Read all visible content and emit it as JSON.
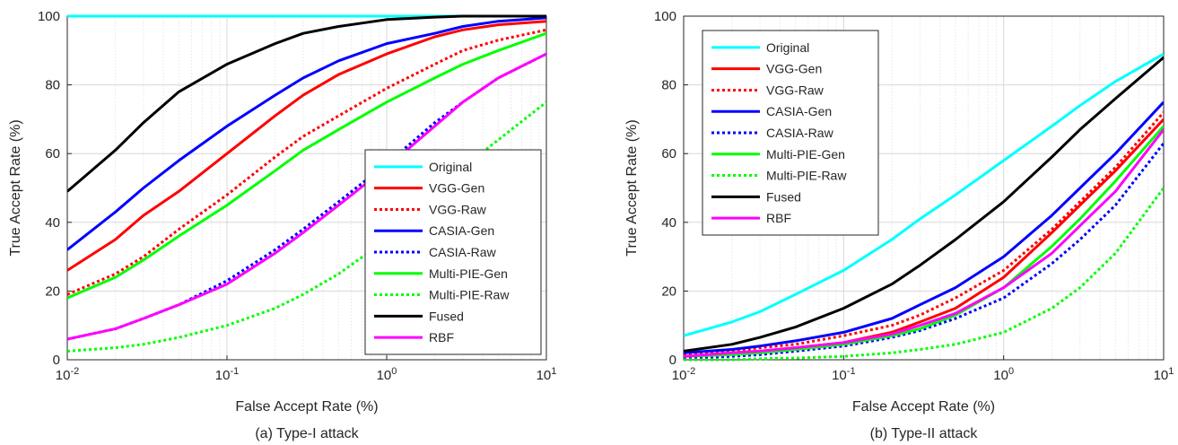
{
  "chart_data": [
    {
      "type": "line",
      "caption": "(a) Type-I attack",
      "xlabel": "False Accept Rate (%)",
      "ylabel": "True Accept Rate (%)",
      "x_scale": "log",
      "xlim": [
        0.01,
        10
      ],
      "ylim": [
        0,
        100
      ],
      "x_ticks": [
        0.01,
        0.1,
        1,
        10
      ],
      "y_ticks": [
        0,
        20,
        40,
        60,
        80,
        100
      ],
      "grid": true,
      "legend_position": "lower-right",
      "x": [
        0.01,
        0.02,
        0.03,
        0.05,
        0.1,
        0.2,
        0.3,
        0.5,
        1,
        2,
        3,
        5,
        10
      ],
      "series": [
        {
          "name": "Original",
          "color": "#00ffff",
          "style": "solid",
          "values": [
            100,
            100,
            100,
            100,
            100,
            100,
            100,
            100,
            100,
            100,
            100,
            100,
            100
          ]
        },
        {
          "name": "VGG-Gen",
          "color": "#ff0000",
          "style": "solid",
          "values": [
            26,
            35,
            42,
            49,
            60,
            71,
            77,
            83,
            89,
            94,
            96,
            97.5,
            98.5
          ]
        },
        {
          "name": "VGG-Raw",
          "color": "#ff0000",
          "style": "dotted",
          "values": [
            19,
            25,
            30,
            38,
            48,
            59,
            65,
            71,
            79,
            86,
            90,
            93,
            96
          ]
        },
        {
          "name": "CASIA-Gen",
          "color": "#0000ff",
          "style": "solid",
          "values": [
            32,
            43,
            50,
            58,
            68,
            77,
            82,
            87,
            92,
            95,
            97,
            98.5,
            99.5
          ]
        },
        {
          "name": "CASIA-Raw",
          "color": "#0000ff",
          "style": "dotted",
          "values": [
            6,
            9,
            12,
            16,
            23,
            32,
            38,
            46,
            57,
            69,
            75,
            82,
            89
          ]
        },
        {
          "name": "Multi-PIE-Gen",
          "color": "#00ff00",
          "style": "solid",
          "values": [
            18,
            24,
            29,
            36,
            45,
            55,
            61,
            67,
            75,
            82,
            86,
            90,
            95
          ]
        },
        {
          "name": "Multi-PIE-Raw",
          "color": "#00ff00",
          "style": "dotted",
          "values": [
            2.5,
            3.5,
            4.5,
            6.5,
            10,
            15,
            19,
            25,
            35,
            48,
            56,
            64,
            75
          ]
        },
        {
          "name": "Fused",
          "color": "#000000",
          "style": "solid",
          "values": [
            49,
            61,
            69,
            78,
            86,
            92,
            95,
            97,
            99,
            99.7,
            100,
            100,
            100
          ]
        },
        {
          "name": "RBF",
          "color": "#ff00ff",
          "style": "solid",
          "values": [
            6,
            9,
            12,
            16,
            22,
            31,
            37,
            45,
            56,
            68,
            75,
            82,
            89
          ]
        }
      ]
    },
    {
      "type": "line",
      "caption": "(b) Type-II attack",
      "xlabel": "False Accept Rate (%)",
      "ylabel": "True Accept Rate (%)",
      "x_scale": "log",
      "xlim": [
        0.01,
        10
      ],
      "ylim": [
        0,
        100
      ],
      "x_ticks": [
        0.01,
        0.1,
        1,
        10
      ],
      "y_ticks": [
        0,
        20,
        40,
        60,
        80,
        100
      ],
      "grid": true,
      "legend_position": "top-left",
      "x": [
        0.01,
        0.02,
        0.03,
        0.05,
        0.1,
        0.2,
        0.3,
        0.5,
        1,
        2,
        3,
        5,
        10
      ],
      "series": [
        {
          "name": "Original",
          "color": "#00ffff",
          "style": "solid",
          "values": [
            7,
            11,
            14,
            19,
            26,
            35,
            41,
            48,
            58,
            68,
            74,
            81,
            89
          ]
        },
        {
          "name": "VGG-Gen",
          "color": "#ff0000",
          "style": "solid",
          "values": [
            1,
            2,
            2.5,
            3.5,
            5,
            8,
            11,
            15,
            24,
            37,
            45,
            55,
            70
          ]
        },
        {
          "name": "VGG-Raw",
          "color": "#ff0000",
          "style": "dotted",
          "values": [
            1.5,
            2.5,
            3.5,
            4.5,
            7,
            10,
            13,
            18,
            26,
            38,
            46,
            56,
            72
          ]
        },
        {
          "name": "CASIA-Gen",
          "color": "#0000ff",
          "style": "solid",
          "values": [
            2,
            3,
            4,
            5.5,
            8,
            12,
            16,
            21,
            30,
            42,
            50,
            60,
            75
          ]
        },
        {
          "name": "CASIA-Raw",
          "color": "#0000ff",
          "style": "dotted",
          "values": [
            0.5,
            1,
            1.5,
            2.5,
            4,
            6.5,
            8.5,
            12,
            18,
            28,
            35,
            45,
            63
          ]
        },
        {
          "name": "Multi-PIE-Gen",
          "color": "#00ff00",
          "style": "solid",
          "values": [
            1,
            1.5,
            2,
            3,
            4.5,
            7,
            9,
            13,
            21,
            33,
            41,
            52,
            68
          ]
        },
        {
          "name": "Multi-PIE-Raw",
          "color": "#00ff00",
          "style": "dotted",
          "values": [
            0,
            0,
            0.3,
            0.5,
            1,
            2,
            3,
            4.5,
            8,
            15,
            21,
            31,
            50
          ]
        },
        {
          "name": "Fused",
          "color": "#000000",
          "style": "solid",
          "values": [
            2.5,
            4.5,
            6.5,
            9.5,
            15,
            22,
            27.5,
            35,
            46,
            59,
            67,
            76,
            88
          ]
        },
        {
          "name": "RBF",
          "color": "#ff00ff",
          "style": "solid",
          "values": [
            1,
            2,
            2.5,
            3.5,
            5,
            7.5,
            10,
            13.5,
            21,
            31,
            39,
            49,
            67
          ]
        }
      ]
    }
  ]
}
